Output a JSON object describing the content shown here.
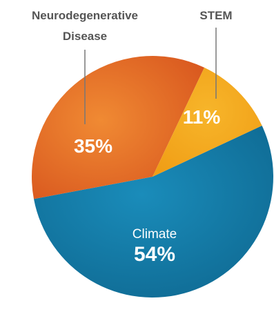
{
  "chart_data": {
    "type": "pie",
    "slices": [
      {
        "label": "Climate",
        "value": 54,
        "value_text": "54%",
        "color": "#137aa6"
      },
      {
        "label": "Neurodegenerative Disease",
        "label_lines": [
          "Neurodegenerative",
          "Disease"
        ],
        "value": 35,
        "value_text": "35%",
        "color": "#e26a28"
      },
      {
        "label": "STEM",
        "value": 11,
        "value_text": "11%",
        "color": "#f5a81f"
      }
    ]
  }
}
